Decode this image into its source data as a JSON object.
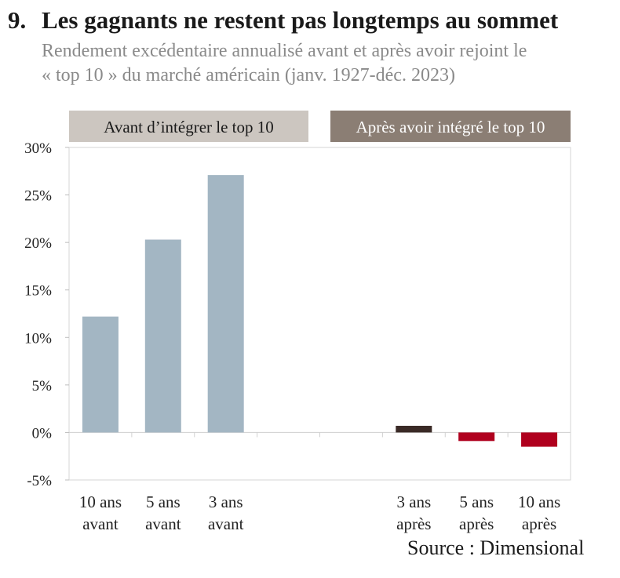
{
  "header": {
    "number": "9.",
    "title": "Les gagnants ne restent pas longtemps au sommet",
    "subtitle_line1": "Rendement excédentaire annualisé avant et après avoir rejoint le",
    "subtitle_line2": "« top 10 » du marché américain (janv. 1927-déc. 2023)"
  },
  "source": "Source : Dimensional",
  "chart_data": {
    "type": "bar",
    "ylim": [
      -5,
      30
    ],
    "yticks": [
      -5,
      0,
      5,
      10,
      15,
      20,
      25,
      30
    ],
    "ytick_labels": [
      "-5%",
      "0%",
      "5%",
      "10%",
      "15%",
      "20%",
      "25%",
      "30%"
    ],
    "grid": false,
    "groups": [
      {
        "label": "Avant d’intégrer le top 10",
        "color": "#ccc6c0",
        "text_color": "#1a1a1a"
      },
      {
        "label": "Après avoir intégré le top 10",
        "color": "#8b7e74",
        "text_color": "#ffffff"
      }
    ],
    "categories": [
      {
        "line1": "10 ans",
        "line2": "avant"
      },
      {
        "line1": "5 ans",
        "line2": "avant"
      },
      {
        "line1": "3 ans",
        "line2": "avant"
      },
      {
        "line1": "",
        "line2": ""
      },
      {
        "line1": "",
        "line2": ""
      },
      {
        "line1": "3 ans",
        "line2": "après"
      },
      {
        "line1": "5 ans",
        "line2": "après"
      },
      {
        "line1": "10 ans",
        "line2": "après"
      }
    ],
    "values": [
      12.2,
      20.3,
      27.1,
      null,
      null,
      0.7,
      -0.9,
      -1.5
    ],
    "bar_colors": [
      "#a3b6c3",
      "#a3b6c3",
      "#a3b6c3",
      null,
      null,
      "#3a2a26",
      "#b0001e",
      "#b0001e"
    ]
  }
}
